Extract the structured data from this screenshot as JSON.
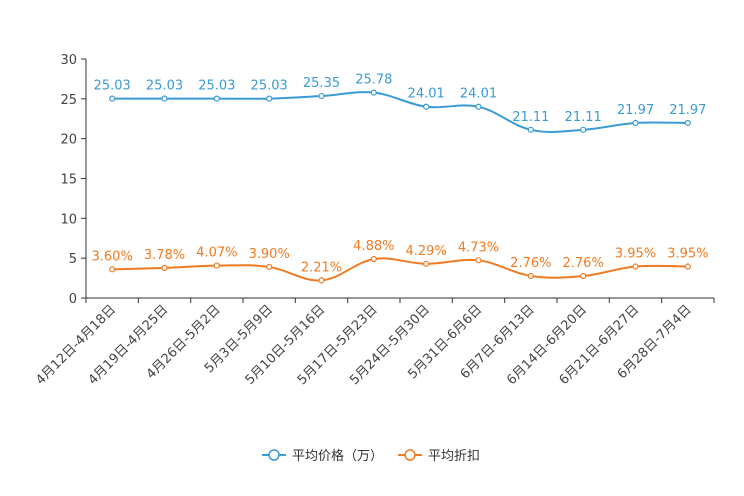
{
  "chart_data": {
    "type": "line",
    "title": "",
    "xlabel": "",
    "ylabel": "",
    "ylim": [
      0,
      30
    ],
    "yticks": [
      0,
      5,
      10,
      15,
      20,
      25,
      30
    ],
    "grid": false,
    "legend_position": "bottom",
    "categories": [
      "4月12日-4月18日",
      "4月19日-4月25日",
      "4月26日-5月2日",
      "5月3日-5月9日",
      "5月10日-5月16日",
      "5月17日-5月23日",
      "5月24日-5月30日",
      "5月31日-6月6日",
      "6月7日-6月13日",
      "6月14日-6月20日",
      "6月21日-6月27日",
      "6月28日-7月4日"
    ],
    "series": [
      {
        "name": "平均价格（万）",
        "color": "#3a9bd5",
        "values": [
          25.03,
          25.03,
          25.03,
          25.03,
          25.35,
          25.78,
          24.01,
          24.01,
          21.11,
          21.11,
          21.97,
          21.97
        ],
        "labels": [
          "25.03",
          "25.03",
          "25.03",
          "25.03",
          "25.35",
          "25.78",
          "24.01",
          "24.01",
          "21.11",
          "21.11",
          "21.97",
          "21.97"
        ]
      },
      {
        "name": "平均折扣",
        "color": "#f07b22",
        "values": [
          3.6,
          3.78,
          4.07,
          3.9,
          2.21,
          4.88,
          4.29,
          4.73,
          2.76,
          2.76,
          3.95,
          3.95
        ],
        "labels": [
          "3.60%",
          "3.78%",
          "4.07%",
          "3.90%",
          "2.21%",
          "4.88%",
          "4.29%",
          "4.73%",
          "2.76%",
          "2.76%",
          "3.95%",
          "3.95%"
        ]
      }
    ]
  }
}
